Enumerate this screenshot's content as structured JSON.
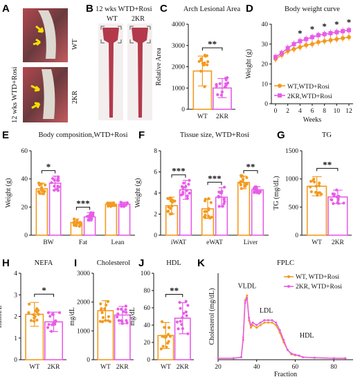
{
  "colors": {
    "wt": "#f39a1e",
    "ko": "#e85ce8",
    "axis": "#111111"
  },
  "panel_letters": [
    "A",
    "B",
    "C",
    "D",
    "E",
    "F",
    "G",
    "H",
    "I",
    "J",
    "K"
  ],
  "panel_A": {
    "label_top": "WT",
    "label_bottom": "2KR",
    "side_label": "12 wks WTD+Rosi"
  },
  "panel_B": {
    "title": "12 wks WTD+Rosi",
    "labels": [
      "WT",
      "2KR"
    ]
  },
  "chart_data": [
    {
      "id": "C",
      "type": "bar",
      "title": "Arch Lesional Area",
      "ylabel": "Relative Area",
      "categories": [
        "WT",
        "2KR"
      ],
      "ylim": [
        0,
        4000
      ],
      "yticks": [
        0,
        1000,
        2000,
        3000,
        4000
      ],
      "values": [
        1800,
        1000
      ],
      "errors": [
        700,
        450
      ],
      "significance": "**"
    },
    {
      "id": "D",
      "type": "line",
      "title": "Body weight curve",
      "xlabel": "Weeks",
      "ylabel": "Weight (g)",
      "xlim": [
        0,
        12
      ],
      "ylim": [
        0,
        40
      ],
      "xticks": [
        0,
        2,
        4,
        6,
        8,
        10,
        12
      ],
      "yticks": [
        0,
        10,
        20,
        30,
        40
      ],
      "x": [
        0,
        1,
        2,
        3,
        4,
        5,
        6,
        7,
        8,
        9,
        10,
        11,
        12
      ],
      "series": [
        {
          "name": "WT,WTD+Rosi",
          "values": [
            22.5,
            24.5,
            26.5,
            27.5,
            28.5,
            29.5,
            30,
            31,
            31.5,
            32,
            32.5,
            33,
            33.5
          ]
        },
        {
          "name": "2KR,WTD+Rosi",
          "values": [
            23.5,
            25.5,
            28,
            30,
            31.5,
            32.5,
            33.5,
            34.5,
            35,
            35.5,
            36,
            36.5,
            37
          ]
        }
      ],
      "significant_weeks": [
        4,
        6,
        8,
        10,
        12
      ],
      "significance": "*",
      "legend": "bottom-right"
    },
    {
      "id": "E",
      "type": "bar",
      "title": "Body composition,WTD+Rosi",
      "ylabel": "Weight (g)",
      "categories": [
        "BW",
        "Fat",
        "Lean"
      ],
      "ylim": [
        0,
        60
      ],
      "yticks": [
        0,
        20,
        40,
        60
      ],
      "series": [
        {
          "values": [
            33,
            9,
            22
          ],
          "errors": [
            4,
            2.5,
            1.5
          ]
        },
        {
          "values": [
            37,
            13,
            22
          ],
          "errors": [
            5,
            3,
            1.5
          ]
        }
      ],
      "significance": [
        "*",
        "***",
        ""
      ]
    },
    {
      "id": "F",
      "type": "bar",
      "title": "Tissue size, WTD+Rosi",
      "ylabel": "Weight (g)",
      "categories": [
        "iWAT",
        "eWAT",
        "Liver"
      ],
      "ylim": [
        0,
        8
      ],
      "yticks": [
        0,
        2,
        4,
        6,
        8
      ],
      "series": [
        {
          "values": [
            2.8,
            2.5,
            5.0
          ],
          "errors": [
            0.8,
            0.9,
            0.6
          ]
        },
        {
          "values": [
            4.3,
            3.6,
            4.3
          ],
          "errors": [
            0.9,
            0.9,
            0.3
          ]
        }
      ],
      "significance": [
        "***",
        "***",
        "**"
      ]
    },
    {
      "id": "G",
      "type": "bar",
      "title": "TG",
      "ylabel": "TG (mg/dL)",
      "categories": [
        "WT",
        "2KR"
      ],
      "ylim": [
        0,
        1500
      ],
      "yticks": [
        0,
        500,
        1000,
        1500
      ],
      "values": [
        870,
        680
      ],
      "errors": [
        170,
        120
      ],
      "significance": "**"
    },
    {
      "id": "H",
      "type": "bar",
      "title": "NEFA",
      "ylabel": "mmol/L",
      "categories": [
        "WT",
        "2KR"
      ],
      "ylim": [
        0,
        4
      ],
      "yticks": [
        0,
        1,
        2,
        3,
        4
      ],
      "values": [
        2.1,
        1.75
      ],
      "errors": [
        0.55,
        0.45
      ],
      "significance": "*"
    },
    {
      "id": "I",
      "type": "bar",
      "title": "Cholesterol",
      "ylabel": "mg/dL",
      "categories": [
        "WT",
        "2KR"
      ],
      "ylim": [
        0,
        3000
      ],
      "yticks": [
        0,
        1000,
        2000,
        3000
      ],
      "values": [
        1700,
        1550
      ],
      "errors": [
        350,
        300
      ],
      "significance": ""
    },
    {
      "id": "J",
      "type": "bar",
      "title": "HDL",
      "ylabel": "mg/dL",
      "categories": [
        "WT",
        "2KR"
      ],
      "ylim": [
        0,
        100
      ],
      "yticks": [
        0,
        20,
        40,
        60,
        80,
        100
      ],
      "values": [
        28,
        48
      ],
      "errors": [
        15,
        18
      ],
      "significance": "**"
    },
    {
      "id": "K",
      "type": "line",
      "title": "FPLC",
      "xlabel": "Fraction",
      "ylabel": "Cholesterol (mg/dL)",
      "xlim": [
        20,
        90
      ],
      "ylim": [
        0,
        35
      ],
      "xticks": [
        20,
        40,
        60,
        80
      ],
      "series": [
        {
          "name": "WT, WTD+Rosi",
          "x": [
            20,
            28,
            32,
            33,
            34,
            35,
            36,
            37,
            38,
            40,
            42,
            44,
            46,
            48,
            50,
            52,
            54,
            56,
            58,
            60,
            62,
            64,
            70,
            80,
            86
          ],
          "values": [
            0.6,
            0.6,
            1,
            9,
            24,
            26,
            16,
            13,
            14,
            13,
            14,
            15,
            15,
            15,
            14,
            11,
            7,
            4,
            2.2,
            1.8,
            1.6,
            1,
            0.8,
            0.6,
            0.6
          ]
        },
        {
          "name": "2KR, WTD+Rosi",
          "x": [
            20,
            28,
            32,
            33,
            34,
            35,
            36,
            37,
            38,
            40,
            42,
            44,
            46,
            48,
            50,
            52,
            54,
            56,
            58,
            60,
            62,
            64,
            70,
            80,
            86
          ],
          "values": [
            0.6,
            0.6,
            1,
            8,
            23,
            25,
            17,
            14,
            15,
            14,
            15,
            16,
            16,
            16,
            15,
            12,
            8,
            4,
            2.5,
            2,
            1.7,
            1,
            0.8,
            0.6,
            0.6
          ]
        }
      ],
      "annotations": [
        "VLDL",
        "LDL",
        "HDL"
      ],
      "legend": "top-right"
    }
  ]
}
